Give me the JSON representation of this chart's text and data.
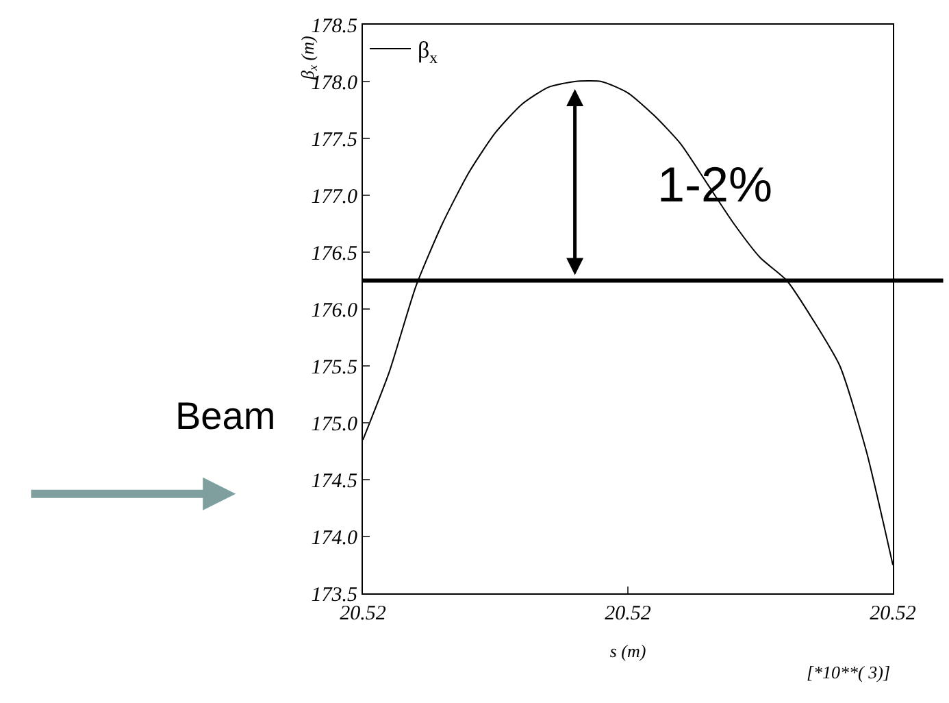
{
  "chart_data": {
    "type": "line",
    "ylabel": "β$_{x}$ (m)",
    "xlabel": "s (m)",
    "categories": [
      "20.52",
      null,
      null,
      null,
      null,
      null,
      null,
      null,
      null,
      null,
      "20.52",
      null,
      null,
      null,
      null,
      null,
      null,
      null,
      null,
      null,
      "20.52"
    ],
    "series": [
      {
        "name": "β$_{x}$",
        "color": "#000000",
        "values": [
          174.85,
          175.45,
          176.2,
          176.75,
          177.2,
          177.55,
          177.8,
          177.95,
          178.0,
          178.0,
          177.9,
          177.7,
          177.45,
          177.1,
          176.75,
          176.45,
          176.25,
          175.9,
          175.5,
          174.75,
          173.75
        ]
      }
    ],
    "ylim": [
      173.5,
      178.5
    ],
    "yticks": [
      173.5,
      {
        "value": 174,
        "label": "174.0"
      },
      174.5,
      {
        "value": 175,
        "label": "175.0"
      },
      175.5,
      {
        "value": 176,
        "label": "176.0"
      },
      176.5,
      {
        "value": 177,
        "label": "177.0"
      },
      177.5,
      {
        "value": 178,
        "label": "178.0"
      },
      178.5
    ],
    "ref_lines": [
      {
        "axis": "y",
        "value": 176.25,
        "color": "#000000"
      }
    ],
    "annotations": [
      "1-2%",
      "[*10**( 3)]",
      "Beam"
    ],
    "grid": false,
    "legend": "top left",
    "marker": "none",
    "line_style": "solid"
  }
}
